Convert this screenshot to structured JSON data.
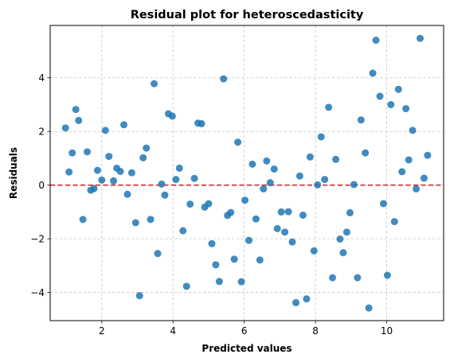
{
  "chart_data": {
    "type": "scatter",
    "title": "Residual plot for heteroscedasticity",
    "xlabel": "Predicted values",
    "ylabel": "Residuals",
    "xlim": [
      0.55,
      11.6
    ],
    "ylim": [
      -5.05,
      5.95
    ],
    "xticks": [
      2,
      4,
      6,
      8,
      10
    ],
    "yticks": [
      -4,
      -2,
      0,
      2,
      4
    ],
    "xtick_labels": [
      "2",
      "4",
      "6",
      "8",
      "10"
    ],
    "ytick_labels": [
      "−4",
      "−2",
      "0",
      "2",
      "4"
    ],
    "grid": true,
    "reference_line": {
      "y": 0,
      "color": "#d62728",
      "style": "dashed"
    },
    "marker_color": "#1f77b4",
    "points": [
      {
        "x": 0.98,
        "y": 2.13
      },
      {
        "x": 1.08,
        "y": 0.49
      },
      {
        "x": 1.17,
        "y": 1.2
      },
      {
        "x": 1.27,
        "y": 2.82
      },
      {
        "x": 1.35,
        "y": 2.41
      },
      {
        "x": 1.47,
        "y": -1.28
      },
      {
        "x": 1.59,
        "y": 1.24
      },
      {
        "x": 1.69,
        "y": -0.19
      },
      {
        "x": 1.78,
        "y": -0.13
      },
      {
        "x": 1.88,
        "y": 0.55
      },
      {
        "x": 2.0,
        "y": 0.19
      },
      {
        "x": 2.1,
        "y": 2.04
      },
      {
        "x": 2.2,
        "y": 1.07
      },
      {
        "x": 2.33,
        "y": 0.16
      },
      {
        "x": 2.42,
        "y": 0.63
      },
      {
        "x": 2.52,
        "y": 0.51
      },
      {
        "x": 2.62,
        "y": 2.25
      },
      {
        "x": 2.72,
        "y": -0.34
      },
      {
        "x": 2.84,
        "y": 0.46
      },
      {
        "x": 2.95,
        "y": -1.4
      },
      {
        "x": 3.06,
        "y": -4.12
      },
      {
        "x": 3.16,
        "y": 1.02
      },
      {
        "x": 3.25,
        "y": 1.38
      },
      {
        "x": 3.37,
        "y": -1.28
      },
      {
        "x": 3.47,
        "y": 3.78
      },
      {
        "x": 3.57,
        "y": -2.55
      },
      {
        "x": 3.68,
        "y": 0.04
      },
      {
        "x": 3.77,
        "y": -0.37
      },
      {
        "x": 3.87,
        "y": 2.66
      },
      {
        "x": 3.98,
        "y": 2.57
      },
      {
        "x": 4.08,
        "y": 0.21
      },
      {
        "x": 4.18,
        "y": 0.63
      },
      {
        "x": 4.28,
        "y": -1.7
      },
      {
        "x": 4.38,
        "y": -3.77
      },
      {
        "x": 4.48,
        "y": -0.71
      },
      {
        "x": 4.6,
        "y": 0.25
      },
      {
        "x": 4.7,
        "y": 2.31
      },
      {
        "x": 4.8,
        "y": 2.29
      },
      {
        "x": 4.89,
        "y": -0.82
      },
      {
        "x": 5.0,
        "y": -0.69
      },
      {
        "x": 5.09,
        "y": -2.18
      },
      {
        "x": 5.2,
        "y": -2.97
      },
      {
        "x": 5.3,
        "y": -3.59
      },
      {
        "x": 5.42,
        "y": 3.96
      },
      {
        "x": 5.53,
        "y": -1.13
      },
      {
        "x": 5.62,
        "y": -1.02
      },
      {
        "x": 5.72,
        "y": -2.76
      },
      {
        "x": 5.82,
        "y": 1.6
      },
      {
        "x": 5.92,
        "y": -3.6
      },
      {
        "x": 6.02,
        "y": -0.56
      },
      {
        "x": 6.13,
        "y": -2.06
      },
      {
        "x": 6.23,
        "y": 0.78
      },
      {
        "x": 6.33,
        "y": -1.26
      },
      {
        "x": 6.44,
        "y": -2.79
      },
      {
        "x": 6.54,
        "y": -0.14
      },
      {
        "x": 6.63,
        "y": 0.9
      },
      {
        "x": 6.73,
        "y": 0.09
      },
      {
        "x": 6.84,
        "y": 0.6
      },
      {
        "x": 6.93,
        "y": -1.62
      },
      {
        "x": 7.04,
        "y": -1.0
      },
      {
        "x": 7.14,
        "y": -1.75
      },
      {
        "x": 7.24,
        "y": -0.99
      },
      {
        "x": 7.35,
        "y": -2.12
      },
      {
        "x": 7.45,
        "y": -4.38
      },
      {
        "x": 7.56,
        "y": 0.34
      },
      {
        "x": 7.65,
        "y": -1.12
      },
      {
        "x": 7.75,
        "y": -4.24
      },
      {
        "x": 7.85,
        "y": 1.05
      },
      {
        "x": 7.96,
        "y": -2.45
      },
      {
        "x": 8.06,
        "y": 0.01
      },
      {
        "x": 8.16,
        "y": 1.8
      },
      {
        "x": 8.26,
        "y": 0.21
      },
      {
        "x": 8.37,
        "y": 2.9
      },
      {
        "x": 8.48,
        "y": -3.45
      },
      {
        "x": 8.57,
        "y": 0.96
      },
      {
        "x": 8.69,
        "y": -2.01
      },
      {
        "x": 8.78,
        "y": -2.52
      },
      {
        "x": 8.88,
        "y": -1.75
      },
      {
        "x": 8.97,
        "y": -1.03
      },
      {
        "x": 9.08,
        "y": 0.02
      },
      {
        "x": 9.18,
        "y": -3.45
      },
      {
        "x": 9.28,
        "y": 2.43
      },
      {
        "x": 9.4,
        "y": 1.2
      },
      {
        "x": 9.5,
        "y": -4.58
      },
      {
        "x": 9.61,
        "y": 4.17
      },
      {
        "x": 9.7,
        "y": 5.4
      },
      {
        "x": 9.81,
        "y": 3.31
      },
      {
        "x": 9.91,
        "y": -0.69
      },
      {
        "x": 10.02,
        "y": -3.36
      },
      {
        "x": 10.12,
        "y": 3.0
      },
      {
        "x": 10.22,
        "y": -1.36
      },
      {
        "x": 10.33,
        "y": 3.57
      },
      {
        "x": 10.43,
        "y": 0.5
      },
      {
        "x": 10.54,
        "y": 2.85
      },
      {
        "x": 10.62,
        "y": 0.94
      },
      {
        "x": 10.73,
        "y": 2.04
      },
      {
        "x": 10.83,
        "y": -0.14
      },
      {
        "x": 10.94,
        "y": 5.47
      },
      {
        "x": 11.05,
        "y": 0.26
      },
      {
        "x": 11.15,
        "y": 1.11
      }
    ]
  }
}
